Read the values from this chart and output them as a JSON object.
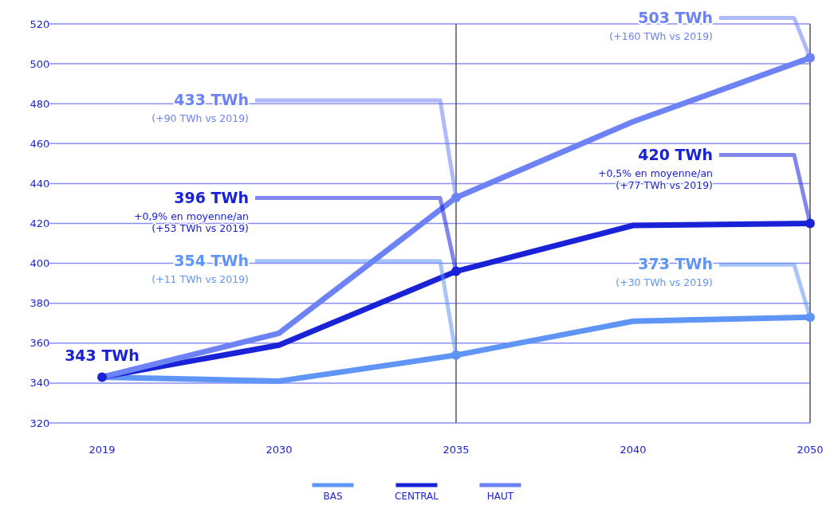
{
  "chart_data": {
    "type": "line",
    "categories": [
      "2019",
      "2030",
      "2035",
      "2040",
      "2050"
    ],
    "series": [
      {
        "name": "BAS",
        "color": "#5f95f7",
        "values": [
          343,
          341,
          354,
          371,
          373
        ]
      },
      {
        "name": "CENTRAL",
        "color": "#1a22d8",
        "values": [
          343,
          359,
          396,
          419,
          420
        ]
      },
      {
        "name": "HAUT",
        "color": "#6c82f5",
        "values": [
          343,
          365,
          433,
          471,
          503
        ]
      }
    ],
    "ylim": [
      320,
      520
    ],
    "yticks": [
      320,
      340,
      360,
      380,
      400,
      420,
      440,
      460,
      480,
      500,
      520
    ],
    "grid": "y",
    "legend": "bottom",
    "line_style": "solid",
    "ref_lines": [
      {
        "axis": "x",
        "value": "2035",
        "color": "#555555"
      },
      {
        "axis": "x",
        "value": "2050",
        "color": "#555555"
      }
    ],
    "annotations": [
      {
        "text": "343 TWh",
        "x": "2019",
        "y": 343
      },
      {
        "text": "354 TWh",
        "x": "2035",
        "y": 354
      },
      "(+11 TWh vs 2019)",
      {
        "text": "396 TWh",
        "x": "2035",
        "y": 396
      },
      "+0,9% en moyenne/an",
      "(+53 TWh vs 2019)",
      {
        "text": "433 TWh",
        "x": "2035",
        "y": 433
      },
      "(+90 TWh vs 2019)",
      {
        "text": "373 TWh",
        "x": "2050",
        "y": 373
      },
      "(+30 TWh vs 2019)",
      {
        "text": "420 TWh",
        "x": "2050",
        "y": 420
      },
      "+0,5% en moyenne/an",
      "(+77 TWh vs 2019)",
      {
        "text": "503 TWh",
        "x": "2050",
        "y": 503
      },
      "(+160 TWh vs 2019)"
    ]
  }
}
